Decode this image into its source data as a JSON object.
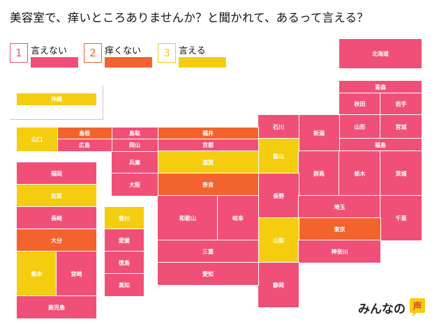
{
  "title": "美容室で、痒いところありませんか？と聞かれて、あるって言える？",
  "colors": {
    "cannot_say": "#f05078",
    "itchy_not": "#f2632e",
    "can_say": "#f5cd10"
  },
  "legend": [
    {
      "number": "1",
      "label": "言えない",
      "category": "cannot_say"
    },
    {
      "number": "2",
      "label": "痒くない",
      "category": "itchy_not"
    },
    {
      "number": "3",
      "label": "言える",
      "category": "can_say"
    }
  ],
  "prefectures": [
    {
      "id": "hokkaido",
      "name": "北海道",
      "category": "cannot_say"
    },
    {
      "id": "aomori",
      "name": "青森",
      "category": "cannot_say"
    },
    {
      "id": "akita",
      "name": "秋田",
      "category": "cannot_say"
    },
    {
      "id": "iwate",
      "name": "岩手",
      "category": "cannot_say"
    },
    {
      "id": "yamagata",
      "name": "山形",
      "category": "cannot_say"
    },
    {
      "id": "miyagi",
      "name": "宮城",
      "category": "cannot_say"
    },
    {
      "id": "fukushima",
      "name": "福島",
      "category": "cannot_say"
    },
    {
      "id": "niigata",
      "name": "新潟",
      "category": "cannot_say"
    },
    {
      "id": "ishikawa",
      "name": "石川",
      "category": "cannot_say"
    },
    {
      "id": "toyama",
      "name": "富山",
      "category": "can_say"
    },
    {
      "id": "gunma",
      "name": "群馬",
      "category": "cannot_say"
    },
    {
      "id": "tochigi",
      "name": "栃木",
      "category": "cannot_say"
    },
    {
      "id": "ibaraki",
      "name": "茨城",
      "category": "cannot_say"
    },
    {
      "id": "nagano",
      "name": "長野",
      "category": "cannot_say"
    },
    {
      "id": "saitama",
      "name": "埼玉",
      "category": "cannot_say"
    },
    {
      "id": "chiba",
      "name": "千葉",
      "category": "cannot_say"
    },
    {
      "id": "tokyo",
      "name": "東京",
      "category": "itchy_not"
    },
    {
      "id": "yamanashi",
      "name": "山梨",
      "category": "can_say"
    },
    {
      "id": "kanagawa",
      "name": "神奈川",
      "category": "cannot_say"
    },
    {
      "id": "shizuoka",
      "name": "静岡",
      "category": "cannot_say"
    },
    {
      "id": "fukui",
      "name": "福井",
      "category": "itchy_not"
    },
    {
      "id": "kyoto",
      "name": "京都",
      "category": "cannot_say"
    },
    {
      "id": "shiga",
      "name": "滋賀",
      "category": "can_say"
    },
    {
      "id": "nara",
      "name": "奈良",
      "category": "itchy_not"
    },
    {
      "id": "wakayama",
      "name": "和歌山",
      "category": "cannot_say"
    },
    {
      "id": "gifu",
      "name": "岐阜",
      "category": "cannot_say"
    },
    {
      "id": "mie",
      "name": "三重",
      "category": "cannot_say"
    },
    {
      "id": "aichi",
      "name": "愛知",
      "category": "cannot_say"
    },
    {
      "id": "hyogo",
      "name": "兵庫",
      "category": "cannot_say"
    },
    {
      "id": "osaka",
      "name": "大阪",
      "category": "cannot_say"
    },
    {
      "id": "tottori",
      "name": "鳥取",
      "category": "cannot_say"
    },
    {
      "id": "okayama",
      "name": "岡山",
      "category": "cannot_say"
    },
    {
      "id": "shimane",
      "name": "島根",
      "category": "itchy_not"
    },
    {
      "id": "hiroshima",
      "name": "広島",
      "category": "cannot_say"
    },
    {
      "id": "yamaguchi",
      "name": "山口",
      "category": "can_say"
    },
    {
      "id": "kagawa",
      "name": "香川",
      "category": "can_say"
    },
    {
      "id": "ehime",
      "name": "愛媛",
      "category": "cannot_say"
    },
    {
      "id": "tokushima",
      "name": "徳島",
      "category": "cannot_say"
    },
    {
      "id": "kochi",
      "name": "高知",
      "category": "cannot_say"
    },
    {
      "id": "fukuoka",
      "name": "福岡",
      "category": "cannot_say"
    },
    {
      "id": "saga",
      "name": "佐賀",
      "category": "can_say"
    },
    {
      "id": "nagasaki",
      "name": "長崎",
      "category": "cannot_say"
    },
    {
      "id": "oita",
      "name": "大分",
      "category": "itchy_not"
    },
    {
      "id": "kumamoto",
      "name": "熊本",
      "category": "can_say"
    },
    {
      "id": "miyazaki",
      "name": "宮崎",
      "category": "cannot_say"
    },
    {
      "id": "kagoshima",
      "name": "鹿児島",
      "category": "cannot_say"
    },
    {
      "id": "okinawa",
      "name": "沖縄",
      "category": "can_say"
    }
  ],
  "logo": {
    "text": "みんなの",
    "mark": "声"
  }
}
